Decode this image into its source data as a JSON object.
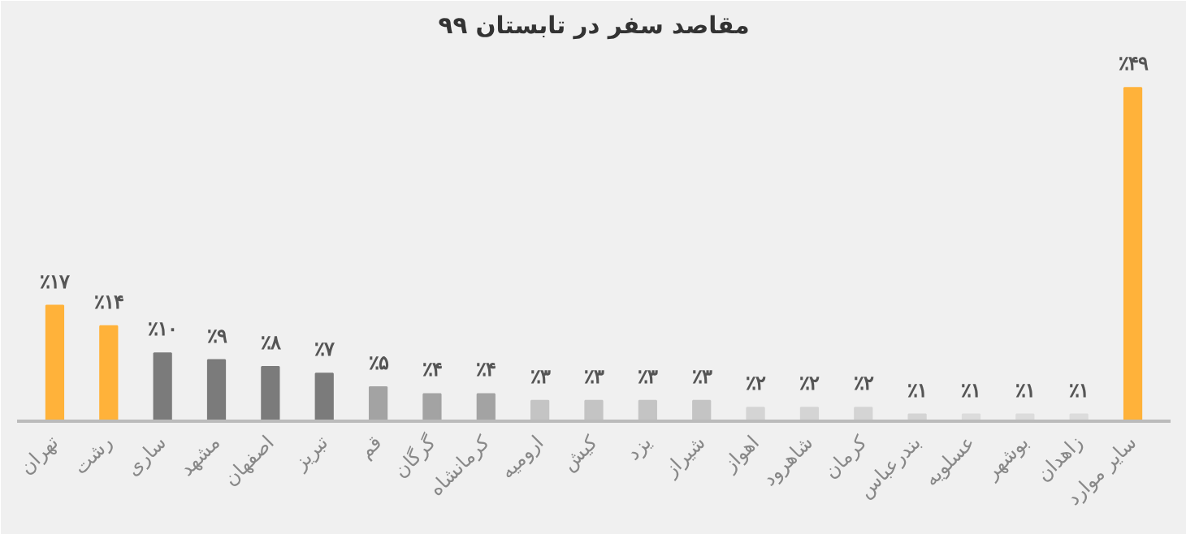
{
  "chart_data": {
    "type": "bar",
    "title": "مقاصد سفر در تابستان ۹۹",
    "categories": [
      "تهران",
      "رشت",
      "ساری",
      "مشهد",
      "اصفهان",
      "تبریز",
      "قم",
      "گرگان",
      "کرمانشاه",
      "ارومیه",
      "کیش",
      "یزد",
      "شیراز",
      "اهواز",
      "شاهرود",
      "کرمان",
      "بندرعباس",
      "عسلویه",
      "بوشهر",
      "زاهدان",
      "سایر موارد"
    ],
    "values": [
      17,
      14,
      10,
      9,
      8,
      7,
      5,
      4,
      4,
      3,
      3,
      3,
      3,
      2,
      2,
      2,
      1,
      1,
      1,
      1,
      49
    ],
    "value_labels": [
      "٪۱۷",
      "٪۱۴",
      "٪۱۰",
      "٪۹",
      "٪۸",
      "٪۷",
      "٪۵",
      "٪۴",
      "٪۴",
      "٪۳",
      "٪۳",
      "٪۳",
      "٪۳",
      "٪۲",
      "٪۲",
      "٪۲",
      "٪۱",
      "٪۱",
      "٪۱",
      "٪۱",
      "٪۴۹"
    ],
    "colors": [
      "#ffb23a",
      "#ffb23a",
      "#7b7b7b",
      "#7b7b7b",
      "#7b7b7b",
      "#7b7b7b",
      "#a3a3a3",
      "#a3a3a3",
      "#a3a3a3",
      "#c4c4c4",
      "#c4c4c4",
      "#c4c4c4",
      "#c4c4c4",
      "#d4d4d4",
      "#d4d4d4",
      "#d4d4d4",
      "#d4d4d4",
      "#dcdcdc",
      "#dcdcdc",
      "#dcdcdc",
      "#ffb23a"
    ],
    "grid": false
  }
}
